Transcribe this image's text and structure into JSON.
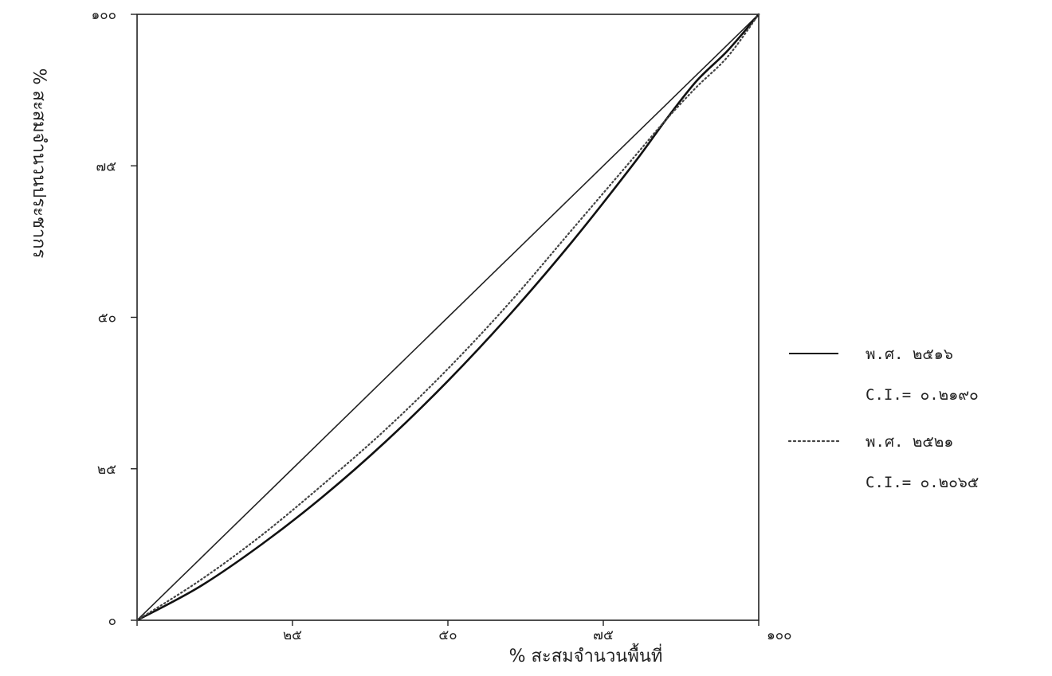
{
  "chart_data": {
    "type": "line",
    "title": "",
    "xlabel": "% สะสมจำนวนพื้นที่",
    "ylabel": "% สะสมจำนวนประชากร",
    "xlim": [
      0,
      100
    ],
    "ylim": [
      0,
      100
    ],
    "x_ticks": [
      {
        "value": 0,
        "label": ""
      },
      {
        "value": 25,
        "label": "๒๕"
      },
      {
        "value": 50,
        "label": "๕๐"
      },
      {
        "value": 75,
        "label": "๗๕"
      },
      {
        "value": 100,
        "label": "๑๐๐"
      }
    ],
    "y_ticks": [
      {
        "value": 0,
        "label": "๐"
      },
      {
        "value": 25,
        "label": "๒๕"
      },
      {
        "value": 50,
        "label": "๕๐"
      },
      {
        "value": 75,
        "label": "๗๕"
      },
      {
        "value": 100,
        "label": "๑๐๐"
      }
    ],
    "grid": false,
    "legend_position": "right",
    "x": [
      0,
      10,
      20,
      30,
      40,
      50,
      60,
      70,
      80,
      85,
      90,
      95,
      100
    ],
    "series": [
      {
        "name": "",
        "style": "solid",
        "color": "#222222",
        "values": [
          0,
          10,
          20,
          30,
          40,
          50,
          60,
          70,
          80,
          85,
          90,
          95,
          100
        ]
      },
      {
        "name": "พ.ศ. ๒๕๑๖",
        "style": "solid",
        "color": "#111111",
        "values": [
          0,
          5.5,
          12.5,
          20.5,
          29.5,
          39.5,
          50.5,
          62.5,
          75.5,
          82.5,
          89.0,
          94.0,
          100
        ]
      },
      {
        "name": "พ.ศ. ๒๕๒๑",
        "style": "dotted",
        "color": "#444444",
        "values": [
          0,
          6.5,
          14,
          22.5,
          31.5,
          41.5,
          52.5,
          64.5,
          76.5,
          82.5,
          88.0,
          93.0,
          100
        ]
      }
    ],
    "legend": [
      {
        "label": "พ.ศ. ๒๕๑๖",
        "ci": "C.I.= ๐.๒๑๙๐",
        "style": "solid"
      },
      {
        "label": "พ.ศ. ๒๕๒๑",
        "ci": "C.I.= ๐.๒๐๖๕",
        "style": "dotted"
      }
    ]
  }
}
